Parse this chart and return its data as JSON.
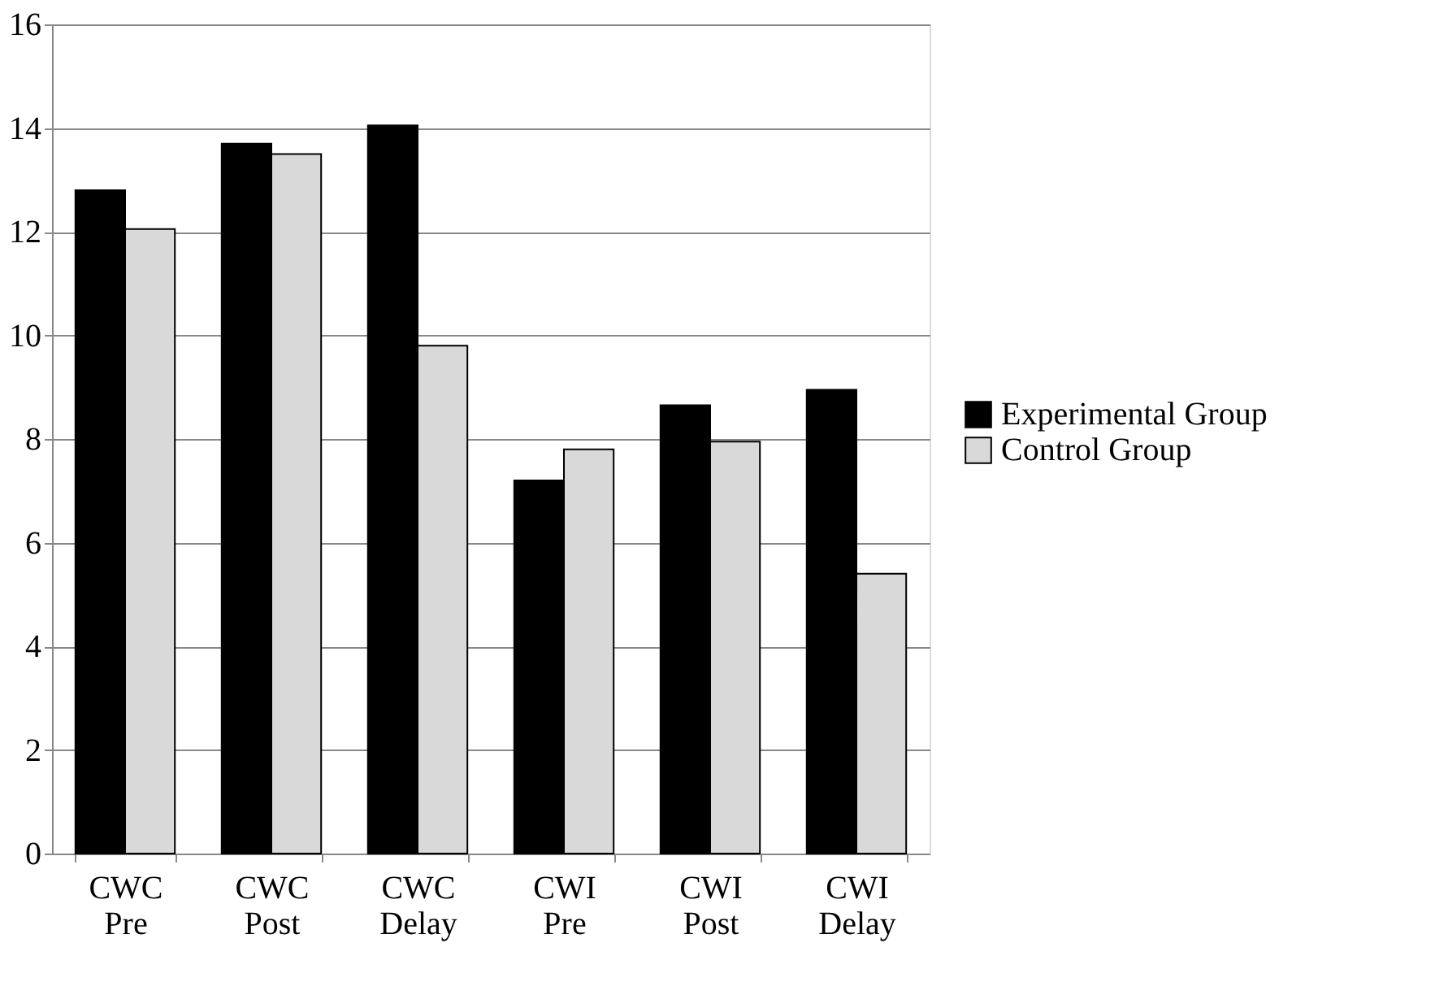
{
  "chart_data": {
    "type": "bar",
    "categories": [
      "CWC Pre",
      "CWC Post",
      "CWC Delay",
      "CWI Pre",
      "CWI Post",
      "CWI Delay"
    ],
    "series": [
      {
        "name": "Experimental Group",
        "color": "#000000",
        "values": [
          12.8,
          13.7,
          14.05,
          7.2,
          8.65,
          8.95
        ]
      },
      {
        "name": "Control Group",
        "color": "#d9d9d9",
        "values": [
          12.05,
          13.5,
          9.8,
          7.8,
          7.95,
          5.4
        ]
      }
    ],
    "ylim": [
      0,
      16
    ],
    "yticks": [
      0,
      2,
      4,
      6,
      8,
      10,
      12,
      14,
      16
    ],
    "grid": "y",
    "legend": "right"
  }
}
